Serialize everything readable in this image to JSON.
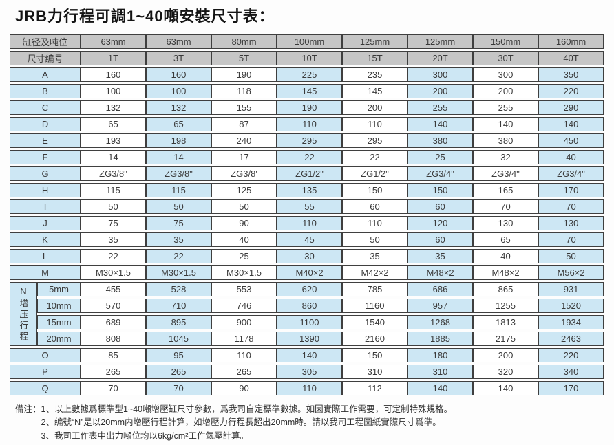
{
  "title": "JRB力行程可調1~40噸安裝尺寸表：",
  "colors": {
    "header_bg": "#c6c6c6",
    "label_bg": "#cde7f4",
    "alt_column_bg": "#cde7f4",
    "border": "#3f3f3f"
  },
  "table": {
    "header_rows": [
      {
        "label": "缸径及吨位",
        "values": [
          "63mm",
          "63mm",
          "80mm",
          "100mm",
          "125mm",
          "125mm",
          "150mm",
          "160mm"
        ]
      },
      {
        "label": "尺寸编号",
        "values": [
          "1T",
          "3T",
          "5T",
          "10T",
          "15T",
          "20T",
          "30T",
          "40T"
        ]
      }
    ],
    "dimension_rows": [
      {
        "label": "A",
        "values": [
          "160",
          "160",
          "190",
          "225",
          "235",
          "300",
          "300",
          "350"
        ]
      },
      {
        "label": "B",
        "values": [
          "100",
          "100",
          "118",
          "145",
          "145",
          "200",
          "200",
          "220"
        ]
      },
      {
        "label": "C",
        "values": [
          "132",
          "132",
          "155",
          "190",
          "200",
          "255",
          "255",
          "290"
        ]
      },
      {
        "label": "D",
        "values": [
          "65",
          "65",
          "87",
          "110",
          "110",
          "140",
          "140",
          "140"
        ]
      },
      {
        "label": "E",
        "values": [
          "193",
          "198",
          "240",
          "295",
          "295",
          "380",
          "380",
          "450"
        ]
      },
      {
        "label": "F",
        "values": [
          "14",
          "14",
          "17",
          "22",
          "22",
          "25",
          "32",
          "40"
        ]
      },
      {
        "label": "G",
        "values": [
          "ZG3/8\"",
          "ZG3/8\"",
          "ZG3/8'",
          "ZG1/2\"",
          "ZG1/2\"",
          "ZG3/4\"",
          "ZG3/4\"",
          "ZG3/4\""
        ]
      },
      {
        "label": "H",
        "values": [
          "115",
          "115",
          "125",
          "135",
          "150",
          "150",
          "165",
          "170"
        ]
      },
      {
        "label": "I",
        "values": [
          "50",
          "50",
          "50",
          "55",
          "60",
          "60",
          "70",
          "70"
        ]
      },
      {
        "label": "J",
        "values": [
          "75",
          "75",
          "90",
          "110",
          "110",
          "120",
          "130",
          "130"
        ]
      },
      {
        "label": "K",
        "values": [
          "35",
          "35",
          "40",
          "45",
          "50",
          "60",
          "65",
          "70"
        ]
      },
      {
        "label": "L",
        "values": [
          "22",
          "22",
          "25",
          "30",
          "35",
          "35",
          "40",
          "50"
        ]
      },
      {
        "label": "M",
        "values": [
          "M30×1.5",
          "M30×1.5",
          "M30×1.5",
          "M40×2",
          "M42×2",
          "M48×2",
          "M48×2",
          "M56×2"
        ]
      }
    ],
    "n_section": {
      "group_label": "N增压行程",
      "sub_rows": [
        {
          "label": "5mm",
          "values": [
            "455",
            "528",
            "553",
            "620",
            "785",
            "686",
            "865",
            "931"
          ]
        },
        {
          "label": "10mm",
          "values": [
            "570",
            "710",
            "746",
            "860",
            "1160",
            "957",
            "1255",
            "1520"
          ]
        },
        {
          "label": "15mm",
          "values": [
            "689",
            "895",
            "900",
            "1100",
            "1540",
            "1268",
            "1813",
            "1934"
          ]
        },
        {
          "label": "20mm",
          "values": [
            "808",
            "1045",
            "1178",
            "1390",
            "2160",
            "1885",
            "2175",
            "2463"
          ]
        }
      ]
    },
    "tail_rows": [
      {
        "label": "O",
        "values": [
          "85",
          "95",
          "110",
          "140",
          "150",
          "180",
          "200",
          "220"
        ]
      },
      {
        "label": "P",
        "values": [
          "265",
          "265",
          "265",
          "305",
          "310",
          "310",
          "320",
          "340"
        ]
      },
      {
        "label": "Q",
        "values": [
          "70",
          "70",
          "90",
          "110",
          "112",
          "140",
          "140",
          "170"
        ]
      }
    ]
  },
  "notes": {
    "prefix": "備注：",
    "items": [
      "1、以上數據爲標準型1~40噸增壓缸尺寸參數，爲我司自定標準數據。如因實際工作需要，可定制特殊規格。",
      "2、编號“N”是以20mm内增壓行程計算，如增壓力行程長超出20mm時。請以我司工程圖紙實際尺寸爲準。",
      "3、我司工作表中出力噸位均以6kg/cm²工作氣壓計算。"
    ]
  }
}
